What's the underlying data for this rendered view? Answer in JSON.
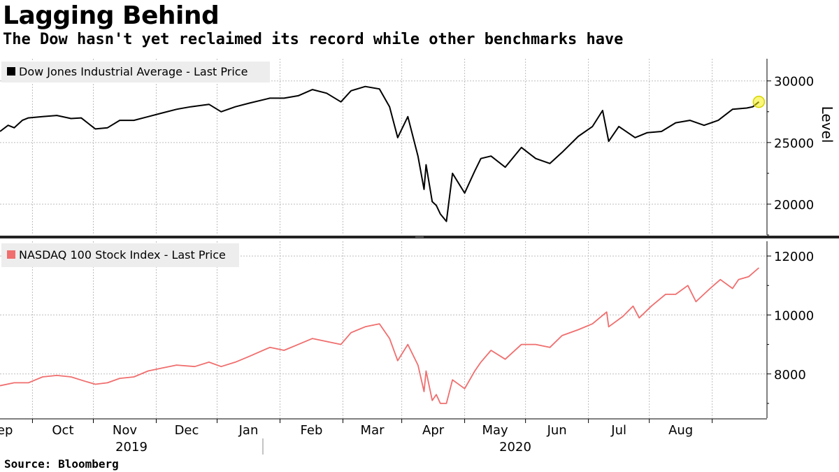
{
  "title": "Lagging Behind",
  "subtitle": "The Dow hasn't yet reclaimed its record while other benchmarks have",
  "source": "Source: Bloomberg",
  "colors": {
    "dow": "#000000",
    "nasdaq": "#f06e6e",
    "marker": "#f5f10f",
    "grid": "#bdbdbd"
  },
  "chart_data": [
    {
      "type": "line",
      "panel": "top",
      "series": [
        {
          "name": "Dow Jones Industrial Average - Last Price",
          "points": [
            [
              "2019-08-16",
              25900
            ],
            [
              "2019-08-20",
              26400
            ],
            [
              "2019-08-23",
              26200
            ],
            [
              "2019-08-27",
              26800
            ],
            [
              "2019-08-30",
              27000
            ],
            [
              "2019-09-06",
              27100
            ],
            [
              "2019-09-13",
              27200
            ],
            [
              "2019-09-20",
              26950
            ],
            [
              "2019-09-25",
              27000
            ],
            [
              "2019-10-02",
              26100
            ],
            [
              "2019-10-08",
              26200
            ],
            [
              "2019-10-14",
              26800
            ],
            [
              "2019-10-21",
              26800
            ],
            [
              "2019-10-28",
              27100
            ],
            [
              "2019-11-04",
              27400
            ],
            [
              "2019-11-11",
              27700
            ],
            [
              "2019-11-18",
              27900
            ],
            [
              "2019-11-27",
              28100
            ],
            [
              "2019-12-03",
              27500
            ],
            [
              "2019-12-10",
              27900
            ],
            [
              "2019-12-17",
              28200
            ],
            [
              "2019-12-27",
              28600
            ],
            [
              "2020-01-03",
              28600
            ],
            [
              "2020-01-10",
              28800
            ],
            [
              "2020-01-17",
              29300
            ],
            [
              "2020-01-24",
              29000
            ],
            [
              "2020-01-31",
              28300
            ],
            [
              "2020-02-05",
              29200
            ],
            [
              "2020-02-12",
              29550
            ],
            [
              "2020-02-19",
              29350
            ],
            [
              "2020-02-24",
              27900
            ],
            [
              "2020-02-28",
              25400
            ],
            [
              "2020-03-04",
              27100
            ],
            [
              "2020-03-09",
              23900
            ],
            [
              "2020-03-12",
              21200
            ],
            [
              "2020-03-13",
              23200
            ],
            [
              "2020-03-16",
              20200
            ],
            [
              "2020-03-18",
              19900
            ],
            [
              "2020-03-20",
              19200
            ],
            [
              "2020-03-23",
              18600
            ],
            [
              "2020-03-26",
              22500
            ],
            [
              "2020-04-01",
              20900
            ],
            [
              "2020-04-06",
              22700
            ],
            [
              "2020-04-09",
              23700
            ],
            [
              "2020-04-14",
              23900
            ],
            [
              "2020-04-21",
              23000
            ],
            [
              "2020-04-29",
              24600
            ],
            [
              "2020-05-06",
              23700
            ],
            [
              "2020-05-13",
              23300
            ],
            [
              "2020-05-19",
              24200
            ],
            [
              "2020-05-27",
              25500
            ],
            [
              "2020-06-03",
              26300
            ],
            [
              "2020-06-08",
              27600
            ],
            [
              "2020-06-11",
              25100
            ],
            [
              "2020-06-16",
              26300
            ],
            [
              "2020-06-24",
              25400
            ],
            [
              "2020-06-30",
              25800
            ],
            [
              "2020-07-07",
              25900
            ],
            [
              "2020-07-14",
              26600
            ],
            [
              "2020-07-21",
              26800
            ],
            [
              "2020-07-28",
              26400
            ],
            [
              "2020-08-04",
              26800
            ],
            [
              "2020-08-11",
              27700
            ],
            [
              "2020-08-18",
              27800
            ],
            [
              "2020-08-21",
              27900
            ],
            [
              "2020-08-24",
              28300
            ]
          ]
        }
      ],
      "ylabel": "Level",
      "yticks": [
        20000,
        25000,
        30000
      ],
      "ylim": [
        17500,
        31800
      ]
    },
    {
      "type": "line",
      "panel": "bottom",
      "series": [
        {
          "name": "NASDAQ 100 Stock Index - Last Price",
          "points": [
            [
              "2019-08-16",
              7600
            ],
            [
              "2019-08-23",
              7700
            ],
            [
              "2019-08-30",
              7700
            ],
            [
              "2019-09-06",
              7900
            ],
            [
              "2019-09-13",
              7950
            ],
            [
              "2019-09-20",
              7900
            ],
            [
              "2019-09-27",
              7750
            ],
            [
              "2019-10-02",
              7650
            ],
            [
              "2019-10-08",
              7700
            ],
            [
              "2019-10-14",
              7850
            ],
            [
              "2019-10-21",
              7900
            ],
            [
              "2019-10-28",
              8100
            ],
            [
              "2019-11-04",
              8200
            ],
            [
              "2019-11-11",
              8300
            ],
            [
              "2019-11-20",
              8250
            ],
            [
              "2019-11-27",
              8400
            ],
            [
              "2019-12-03",
              8250
            ],
            [
              "2019-12-10",
              8400
            ],
            [
              "2019-12-17",
              8600
            ],
            [
              "2019-12-27",
              8900
            ],
            [
              "2020-01-03",
              8800
            ],
            [
              "2020-01-10",
              9000
            ],
            [
              "2020-01-17",
              9200
            ],
            [
              "2020-01-24",
              9100
            ],
            [
              "2020-01-31",
              9000
            ],
            [
              "2020-02-05",
              9400
            ],
            [
              "2020-02-12",
              9600
            ],
            [
              "2020-02-19",
              9700
            ],
            [
              "2020-02-24",
              9200
            ],
            [
              "2020-02-28",
              8450
            ],
            [
              "2020-03-04",
              9000
            ],
            [
              "2020-03-09",
              8300
            ],
            [
              "2020-03-12",
              7400
            ],
            [
              "2020-03-13",
              8100
            ],
            [
              "2020-03-16",
              7100
            ],
            [
              "2020-03-18",
              7300
            ],
            [
              "2020-03-20",
              7000
            ],
            [
              "2020-03-23",
              7000
            ],
            [
              "2020-03-26",
              7800
            ],
            [
              "2020-04-01",
              7500
            ],
            [
              "2020-04-06",
              8100
            ],
            [
              "2020-04-09",
              8400
            ],
            [
              "2020-04-14",
              8800
            ],
            [
              "2020-04-21",
              8500
            ],
            [
              "2020-04-29",
              9000
            ],
            [
              "2020-05-06",
              9000
            ],
            [
              "2020-05-13",
              8900
            ],
            [
              "2020-05-19",
              9300
            ],
            [
              "2020-05-27",
              9500
            ],
            [
              "2020-06-03",
              9700
            ],
            [
              "2020-06-10",
              10100
            ],
            [
              "2020-06-11",
              9600
            ],
            [
              "2020-06-18",
              9950
            ],
            [
              "2020-06-23",
              10300
            ],
            [
              "2020-06-26",
              9900
            ],
            [
              "2020-07-02",
              10300
            ],
            [
              "2020-07-09",
              10700
            ],
            [
              "2020-07-14",
              10700
            ],
            [
              "2020-07-20",
              11000
            ],
            [
              "2020-07-24",
              10450
            ],
            [
              "2020-07-31",
              10900
            ],
            [
              "2020-08-05",
              11200
            ],
            [
              "2020-08-11",
              10900
            ],
            [
              "2020-08-14",
              11200
            ],
            [
              "2020-08-19",
              11300
            ],
            [
              "2020-08-24",
              11600
            ]
          ]
        }
      ],
      "yticks": [
        8000,
        10000,
        12000
      ],
      "ylim": [
        6500,
        12500
      ]
    }
  ],
  "x_axis": {
    "months": [
      "Sep",
      "Oct",
      "Nov",
      "Dec",
      "Jan",
      "Feb",
      "Mar",
      "Apr",
      "May",
      "Jun",
      "Jul",
      "Aug"
    ],
    "years": [
      "2019",
      "2020"
    ]
  }
}
